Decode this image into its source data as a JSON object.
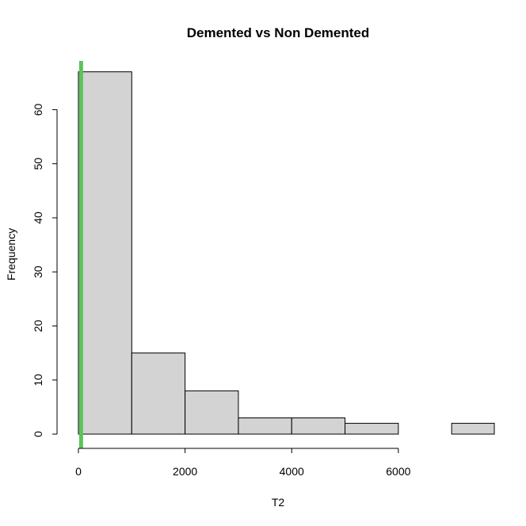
{
  "chart_data": {
    "type": "bar",
    "title": "Demented vs Non Demented",
    "xlabel": "T2",
    "ylabel": "Frequency",
    "bins": [
      {
        "start": 0,
        "end": 1000,
        "count": 67
      },
      {
        "start": 1000,
        "end": 2000,
        "count": 15
      },
      {
        "start": 2000,
        "end": 3000,
        "count": 8
      },
      {
        "start": 3000,
        "end": 4000,
        "count": 3
      },
      {
        "start": 4000,
        "end": 5000,
        "count": 3
      },
      {
        "start": 5000,
        "end": 6000,
        "count": 2
      },
      {
        "start": 6000,
        "end": 7000,
        "count": 0
      },
      {
        "start": 7000,
        "end": 8000,
        "count": 2
      }
    ],
    "x_ticks": [
      "0",
      "2000",
      "4000",
      "6000"
    ],
    "y_ticks": [
      "0",
      "10",
      "20",
      "30",
      "40",
      "50",
      "60"
    ],
    "xlim": [
      0,
      7800
    ],
    "ylim": [
      0,
      69
    ],
    "bar_fill": "#d3d3d3",
    "bar_stroke": "#000000",
    "reference_line": {
      "x": 50,
      "color": "#5cc35c"
    },
    "grid": false
  }
}
